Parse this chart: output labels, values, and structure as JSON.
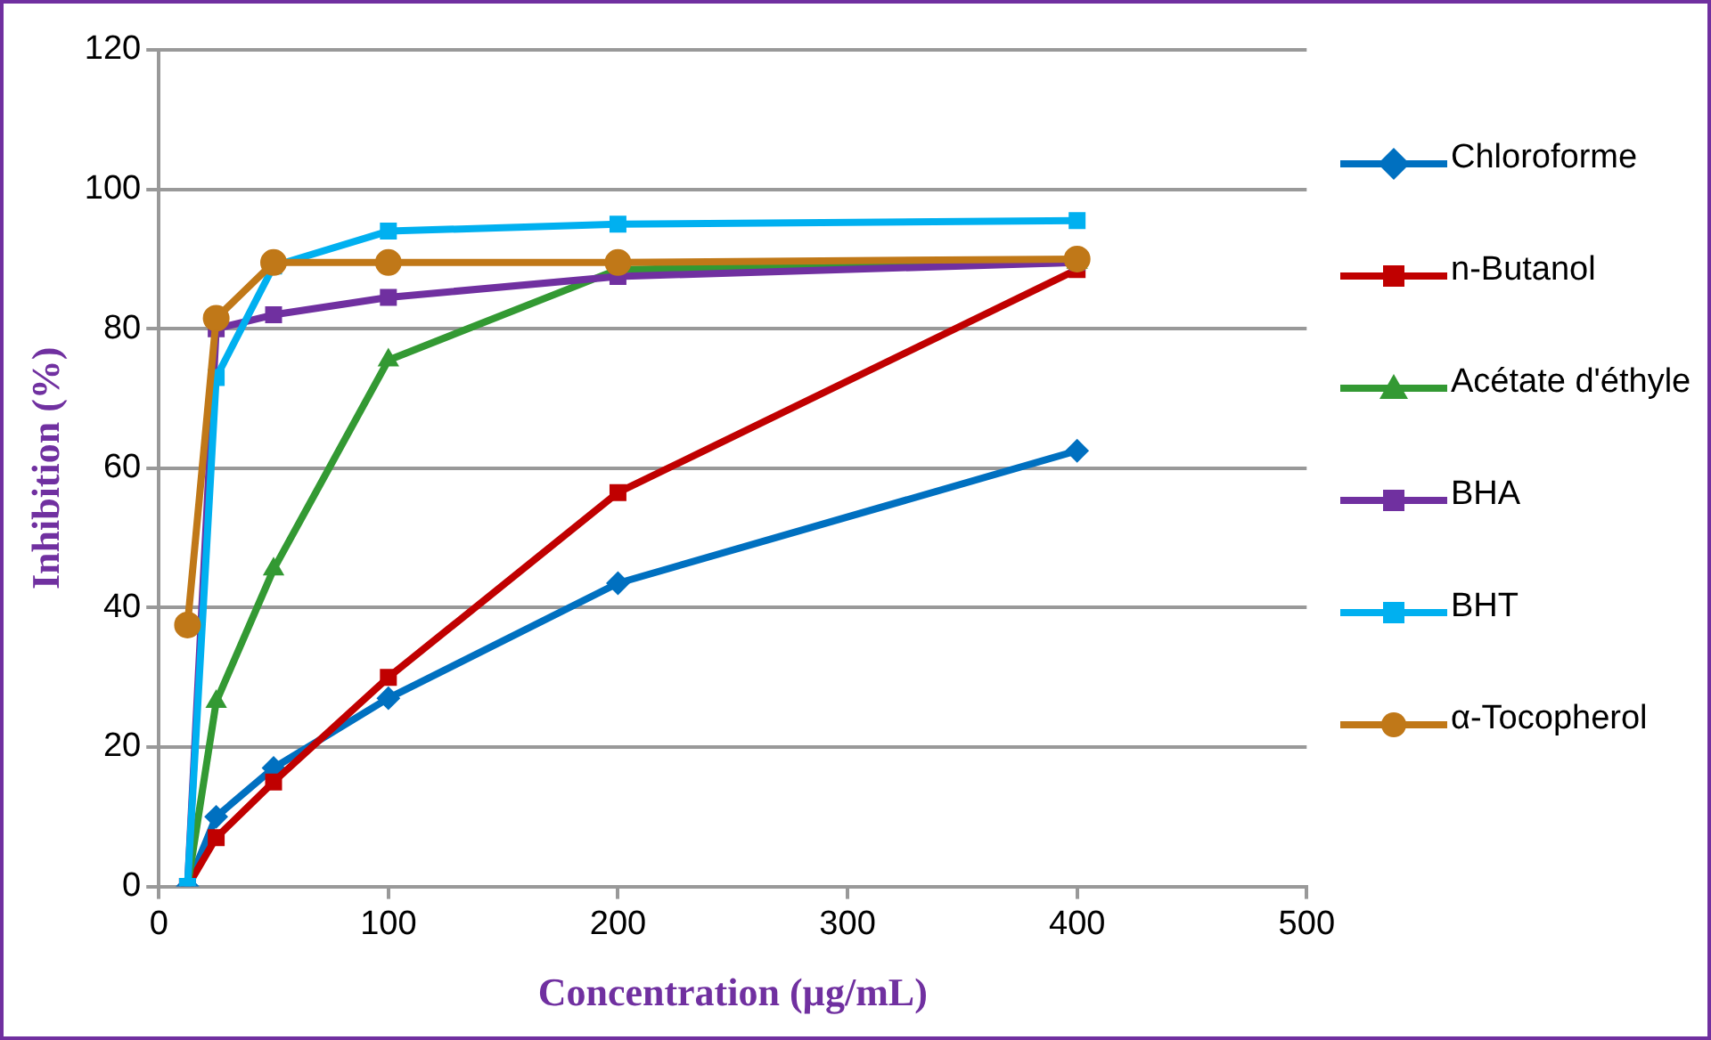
{
  "chart_data": {
    "type": "line",
    "xlabel": "Concentration (µg/mL)",
    "ylabel": "Inhibition (%)",
    "x": [
      12.5,
      25,
      50,
      100,
      200,
      400
    ],
    "xlim": [
      0,
      500
    ],
    "xticks": [
      0,
      100,
      200,
      300,
      400,
      500
    ],
    "ylim": [
      0,
      120
    ],
    "yticks": [
      0,
      20,
      40,
      60,
      80,
      100,
      120
    ],
    "grid": "y",
    "legend": "right",
    "series": [
      {
        "name": "Chloroforme",
        "color": "#0070c0",
        "marker": "diamond",
        "values": [
          0,
          10,
          17,
          27,
          43.5,
          62.5
        ]
      },
      {
        "name": "n-Butanol",
        "color": "#c00000",
        "marker": "square",
        "values": [
          0,
          7,
          15,
          30,
          56.5,
          88.5
        ]
      },
      {
        "name": "Acétate d'éthyle",
        "color": "#339933",
        "marker": "triangle",
        "values": [
          0,
          26.5,
          45.5,
          75.5,
          88.5,
          89.5
        ]
      },
      {
        "name": "BHA",
        "color": "#7030a0",
        "marker": "square",
        "values": [
          0,
          80,
          82,
          84.5,
          87.5,
          89.5
        ]
      },
      {
        "name": "BHT",
        "color": "#00b0f0",
        "marker": "square",
        "values": [
          0,
          73,
          89,
          94,
          95,
          95.5
        ]
      },
      {
        "name": "α-Tocopherol",
        "color": "#c07818",
        "marker": "circle",
        "values": [
          37.5,
          81.5,
          89.5,
          89.5,
          89.5,
          90
        ]
      }
    ]
  }
}
